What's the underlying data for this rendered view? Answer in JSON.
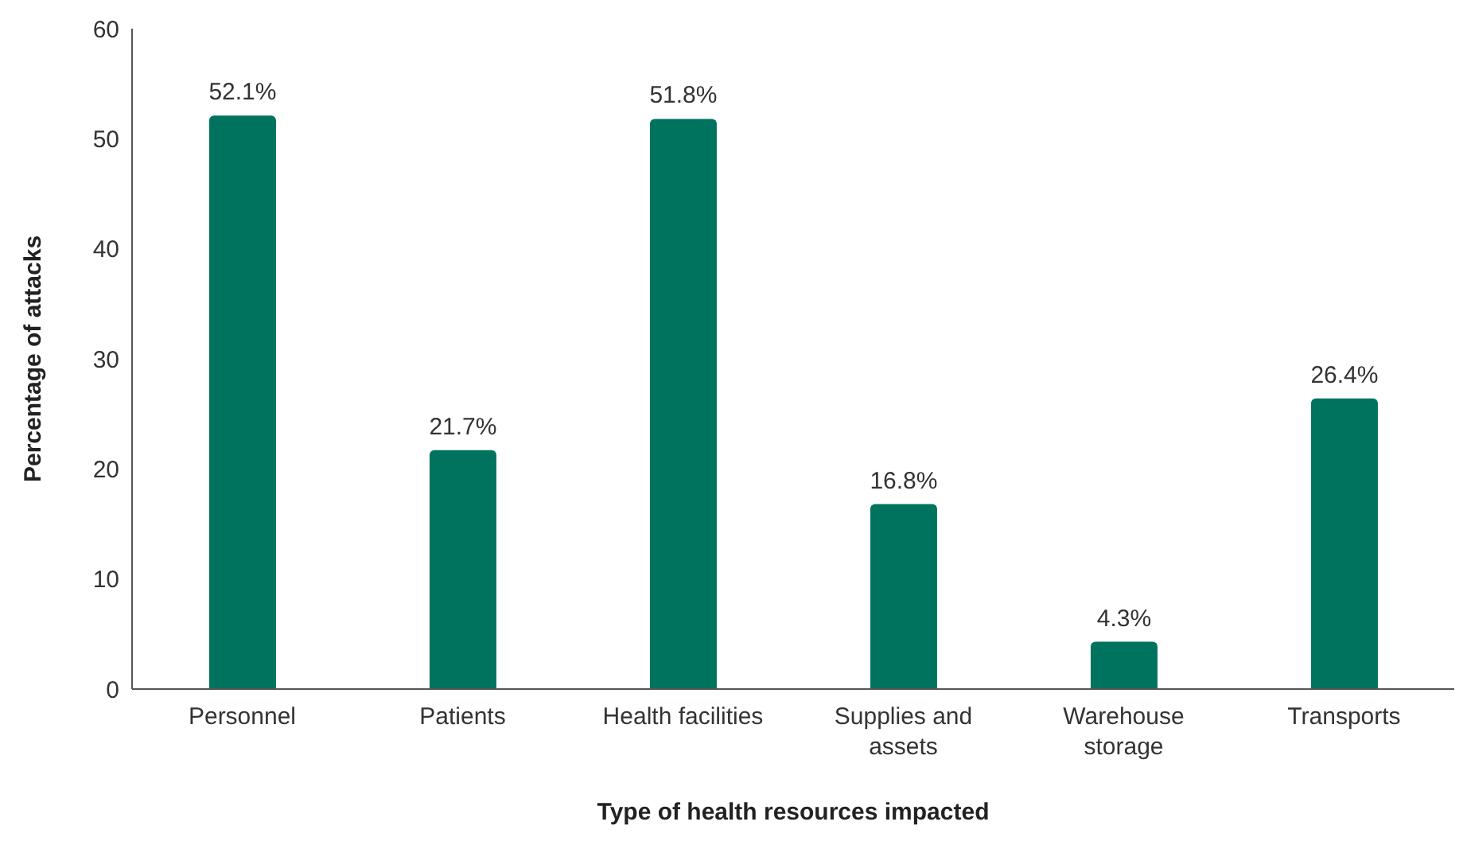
{
  "chart_data": {
    "type": "bar",
    "xlabel": "Type of health resources impacted",
    "ylabel": "Percentage of attacks",
    "categories": [
      "Personnel",
      "Patients",
      "Health facilities",
      "Supplies and assets",
      "Warehouse storage",
      "Transports"
    ],
    "values": [
      52.1,
      21.7,
      51.8,
      16.8,
      4.3,
      26.4
    ],
    "value_labels": [
      "52.1%",
      "21.7%",
      "51.8%",
      "16.8%",
      "4.3%",
      "26.4%"
    ],
    "color": "#00735f",
    "ylim": [
      0,
      60
    ],
    "yticks": [
      0,
      10,
      20,
      30,
      40,
      50,
      60
    ],
    "grid": false,
    "legend": false
  }
}
